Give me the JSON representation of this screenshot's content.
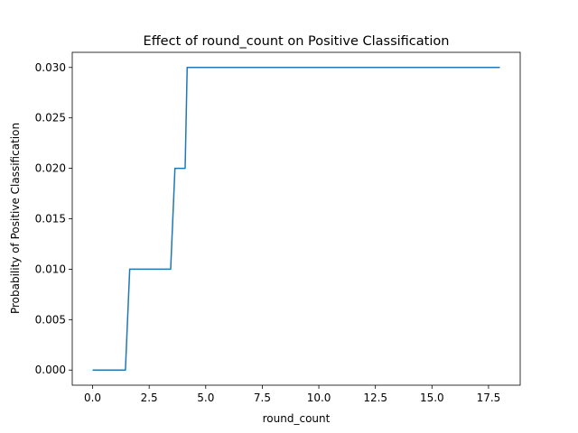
{
  "chart_data": {
    "type": "line",
    "title": "Effect of round_count on Positive Classification",
    "xlabel": "round_count",
    "ylabel": "Probability of Positive Classification",
    "xlim": [
      -0.9,
      18.9
    ],
    "ylim": [
      -0.0015,
      0.0315
    ],
    "x_ticks": [
      0.0,
      2.5,
      5.0,
      7.5,
      10.0,
      12.5,
      15.0,
      17.5
    ],
    "x_tick_labels": [
      "0.0",
      "2.5",
      "5.0",
      "7.5",
      "10.0",
      "12.5",
      "15.0",
      "17.5"
    ],
    "y_ticks": [
      0.0,
      0.005,
      0.01,
      0.015,
      0.02,
      0.025,
      0.03
    ],
    "y_tick_labels": [
      "0.000",
      "0.005",
      "0.010",
      "0.015",
      "0.020",
      "0.025",
      "0.030"
    ],
    "grid": false,
    "legend": "none",
    "series": [
      {
        "color": "#1f77b4",
        "x": [
          0.0,
          1.45,
          1.64,
          3.45,
          3.64,
          4.09,
          4.18,
          18.0
        ],
        "y": [
          0.0,
          0.0,
          0.01,
          0.01,
          0.02,
          0.02,
          0.03,
          0.03
        ]
      }
    ]
  }
}
